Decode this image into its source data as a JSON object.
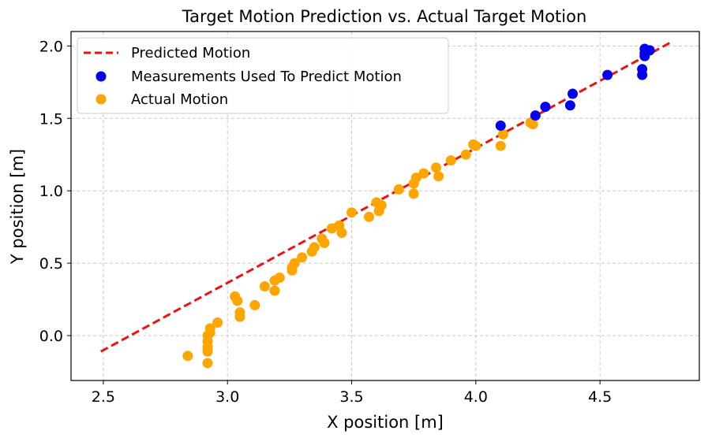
{
  "chart_data": {
    "type": "scatter",
    "title": "Target Motion Prediction vs. Actual Target Motion",
    "xlabel": "X position [m]",
    "ylabel": "Y position [m]",
    "xlim": [
      2.37,
      4.9
    ],
    "ylim": [
      -0.31,
      2.1
    ],
    "x_ticks": [
      2.5,
      3.0,
      3.5,
      4.0,
      4.5
    ],
    "x_tick_labels": [
      "2.5",
      "3.0",
      "3.5",
      "4.0",
      "4.5"
    ],
    "y_ticks": [
      0.0,
      0.5,
      1.0,
      1.5,
      2.0
    ],
    "y_tick_labels": [
      "0.0",
      "0.5",
      "1.0",
      "1.5",
      "2.0"
    ],
    "grid": true,
    "legend_position": "upper-left",
    "series": [
      {
        "name": "Predicted Motion",
        "kind": "line",
        "style": "dashed",
        "color": "#ee1111",
        "x": [
          2.49,
          4.78
        ],
        "y": [
          -0.11,
          2.02
        ]
      },
      {
        "name": "Measurements Used To Predict Motion",
        "kind": "scatter",
        "color": "#0000ee",
        "x": [
          4.1,
          4.24,
          4.28,
          4.38,
          4.39,
          4.53,
          4.67,
          4.67,
          4.68,
          4.68,
          4.7,
          4.68
        ],
        "y": [
          1.45,
          1.52,
          1.58,
          1.59,
          1.67,
          1.8,
          1.8,
          1.84,
          1.98,
          1.95,
          1.97,
          1.93
        ]
      },
      {
        "name": "Actual Motion",
        "kind": "scatter",
        "color": "#ffa500",
        "x": [
          2.84,
          2.92,
          2.92,
          2.92,
          2.92,
          2.92,
          2.93,
          2.93,
          2.96,
          3.03,
          3.04,
          3.05,
          3.05,
          3.11,
          3.15,
          3.19,
          3.19,
          3.21,
          3.26,
          3.26,
          3.27,
          3.3,
          3.34,
          3.35,
          3.38,
          3.39,
          3.42,
          3.45,
          3.46,
          3.5,
          3.57,
          3.61,
          3.62,
          3.6,
          3.69,
          3.75,
          3.75,
          3.76,
          3.79,
          3.84,
          3.85,
          3.9,
          3.96,
          3.99,
          4.0,
          4.1,
          4.11,
          4.23,
          4.22
        ],
        "y": [
          -0.14,
          -0.19,
          -0.11,
          -0.08,
          -0.04,
          0.0,
          0.02,
          0.05,
          0.09,
          0.27,
          0.24,
          0.16,
          0.13,
          0.21,
          0.34,
          0.31,
          0.38,
          0.4,
          0.45,
          0.47,
          0.5,
          0.54,
          0.58,
          0.61,
          0.67,
          0.64,
          0.74,
          0.76,
          0.71,
          0.85,
          0.82,
          0.86,
          0.9,
          0.92,
          1.01,
          0.98,
          1.05,
          1.09,
          1.12,
          1.16,
          1.1,
          1.21,
          1.25,
          1.32,
          1.31,
          1.31,
          1.39,
          1.46,
          1.47
        ]
      }
    ]
  }
}
